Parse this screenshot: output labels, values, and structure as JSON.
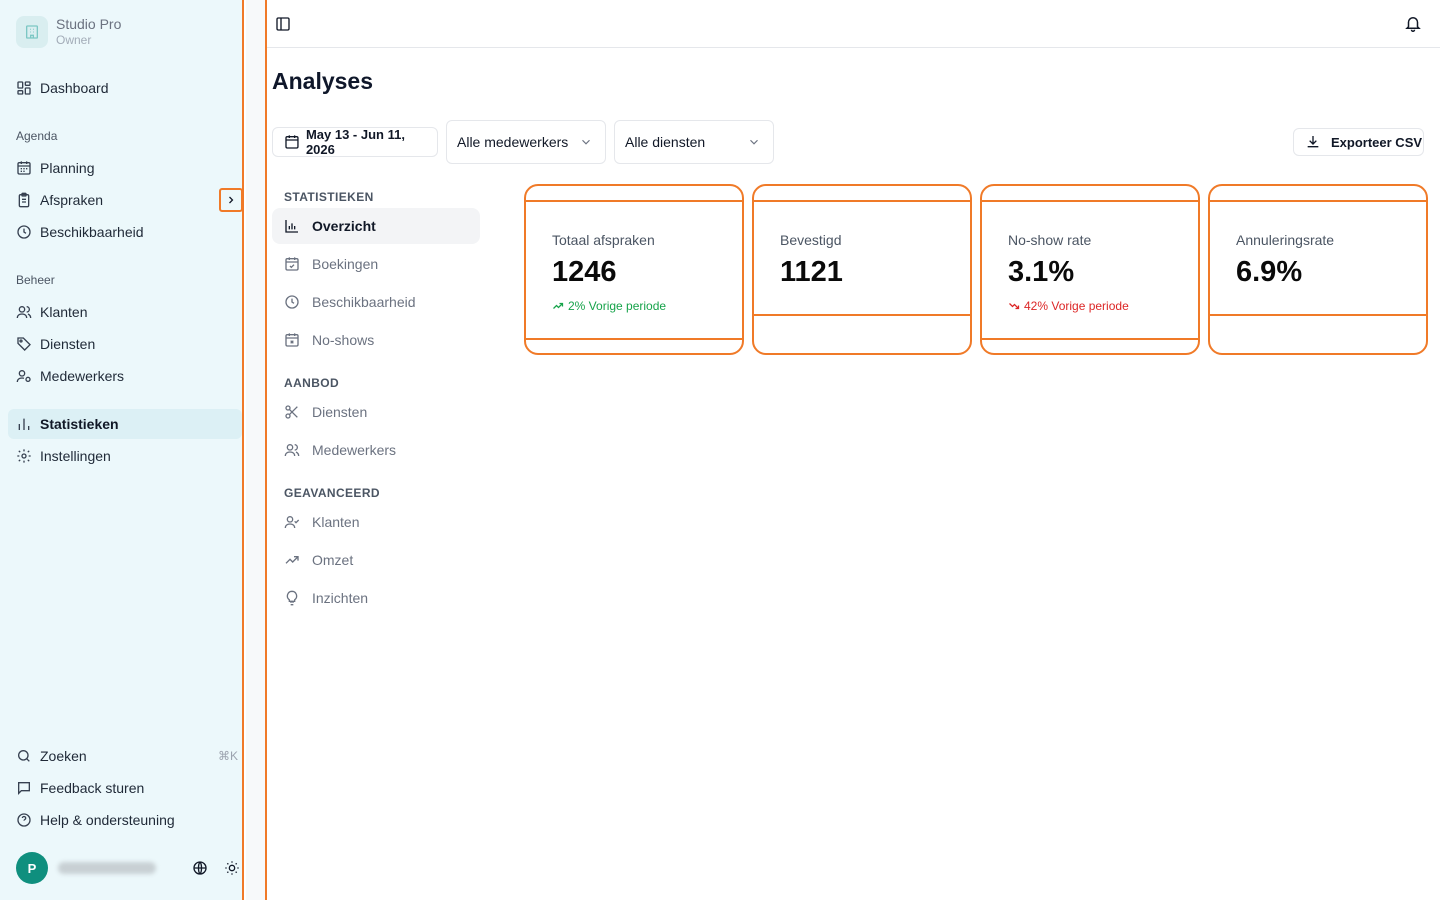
{
  "sidebar": {
    "brand": {
      "name": "Studio Pro",
      "role": "Owner"
    },
    "items": [
      {
        "label": "Dashboard"
      },
      {
        "label": "Planning"
      },
      {
        "label": "Afspraken"
      },
      {
        "label": "Beschikbaarheid"
      },
      {
        "label": "Klanten"
      },
      {
        "label": "Diensten"
      },
      {
        "label": "Medewerkers"
      },
      {
        "label": "Statistieken"
      },
      {
        "label": "Instellingen"
      }
    ],
    "sections": {
      "agenda": "Agenda",
      "beheer": "Beheer"
    },
    "footer": {
      "search": "Zoeken",
      "search_shortcut": "⌘K",
      "feedback": "Feedback sturen",
      "help": "Help & ondersteuning"
    },
    "user": {
      "initial": "P"
    }
  },
  "header": {
    "title": "Analyses"
  },
  "filters": {
    "date_range": "May 13 - Jun 11, 2026",
    "staff": "Alle medewerkers",
    "services": "Alle diensten",
    "export": "Exporteer CSV"
  },
  "subnav": {
    "sections": {
      "statistieken": "STATISTIEKEN",
      "aanbod": "AANBOD",
      "geavanceerd": "GEAVANCEERD"
    },
    "items": {
      "overzicht": "Overzicht",
      "boekingen": "Boekingen",
      "beschikbaarheid": "Beschikbaarheid",
      "noshows": "No-shows",
      "diensten": "Diensten",
      "medewerkers": "Medewerkers",
      "klanten": "Klanten",
      "omzet": "Omzet",
      "inzichten": "Inzichten"
    }
  },
  "stats": [
    {
      "label": "Totaal afspraken",
      "value": "1246",
      "trend": "2% Vorige periode",
      "trend_dir": "up"
    },
    {
      "label": "Bevestigd",
      "value": "1121"
    },
    {
      "label": "No-show rate",
      "value": "3.1%",
      "trend": "42% Vorige periode",
      "trend_dir": "down"
    },
    {
      "label": "Annuleringsrate",
      "value": "6.9%"
    }
  ],
  "colors": {
    "accent_outline": "#f07a28",
    "trend_up": "#16a34a",
    "trend_down": "#dc2626",
    "avatar": "#0f8f7e"
  }
}
